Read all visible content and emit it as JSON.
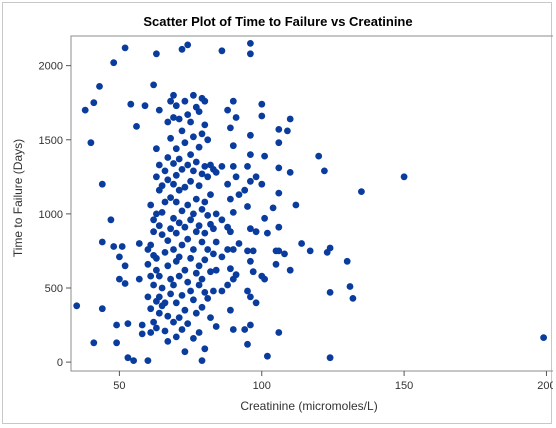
{
  "chart_data": {
    "type": "scatter",
    "title": "Scatter Plot of Time to Failure vs Creatinine",
    "xlabel": "Creatinine (micromoles/L)",
    "ylabel": "Time to Failure (Days)",
    "xlim": [
      33,
      203
    ],
    "ylim": [
      -60,
      2200
    ],
    "xticks": [
      50,
      100,
      150,
      200
    ],
    "yticks": [
      0,
      500,
      1000,
      1500,
      2000
    ],
    "marker_color": "#0a3c9e",
    "grid": false,
    "points": [
      [
        35,
        380
      ],
      [
        38,
        1700
      ],
      [
        40,
        1480
      ],
      [
        41,
        1750
      ],
      [
        41,
        130
      ],
      [
        43,
        1860
      ],
      [
        44,
        1200
      ],
      [
        44,
        810
      ],
      [
        44,
        360
      ],
      [
        47,
        960
      ],
      [
        48,
        2020
      ],
      [
        48,
        780
      ],
      [
        49,
        130
      ],
      [
        49,
        250
      ],
      [
        50,
        560
      ],
      [
        50,
        710
      ],
      [
        51,
        780
      ],
      [
        52,
        2120
      ],
      [
        52,
        530
      ],
      [
        52,
        650
      ],
      [
        53,
        30
      ],
      [
        53,
        260
      ],
      [
        54,
        1740
      ],
      [
        55,
        10
      ],
      [
        56,
        1590
      ],
      [
        57,
        800
      ],
      [
        57,
        560
      ],
      [
        58,
        250
      ],
      [
        58,
        190
      ],
      [
        59,
        1730
      ],
      [
        60,
        660
      ],
      [
        60,
        760
      ],
      [
        60,
        440
      ],
      [
        60,
        10
      ],
      [
        61,
        1060
      ],
      [
        61,
        790
      ],
      [
        61,
        580
      ],
      [
        61,
        360
      ],
      [
        61,
        200
      ],
      [
        62,
        1870
      ],
      [
        62,
        960
      ],
      [
        62,
        880
      ],
      [
        62,
        720
      ],
      [
        62,
        520
      ],
      [
        62,
        270
      ],
      [
        63,
        2080
      ],
      [
        63,
        1440
      ],
      [
        63,
        1250
      ],
      [
        63,
        1000
      ],
      [
        63,
        700
      ],
      [
        63,
        620
      ],
      [
        63,
        410
      ],
      [
        63,
        230
      ],
      [
        64,
        1700
      ],
      [
        64,
        1330
      ],
      [
        64,
        1160
      ],
      [
        64,
        920
      ],
      [
        64,
        580
      ],
      [
        64,
        440
      ],
      [
        64,
        330
      ],
      [
        65,
        1190
      ],
      [
        65,
        1010
      ],
      [
        65,
        860
      ],
      [
        65,
        500
      ],
      [
        65,
        380
      ],
      [
        66,
        1290
      ],
      [
        66,
        1080
      ],
      [
        66,
        740
      ],
      [
        66,
        400
      ],
      [
        66,
        210
      ],
      [
        67,
        1620
      ],
      [
        67,
        1380
      ],
      [
        67,
        1230
      ],
      [
        67,
        820
      ],
      [
        67,
        650
      ],
      [
        67,
        310
      ],
      [
        67,
        140
      ],
      [
        68,
        1760
      ],
      [
        68,
        1510
      ],
      [
        68,
        1110
      ],
      [
        68,
        900
      ],
      [
        68,
        560
      ],
      [
        68,
        460
      ],
      [
        69,
        1800
      ],
      [
        69,
        1650
      ],
      [
        69,
        1340
      ],
      [
        69,
        1200
      ],
      [
        69,
        970
      ],
      [
        69,
        760
      ],
      [
        69,
        520
      ],
      [
        69,
        270
      ],
      [
        70,
        1730
      ],
      [
        70,
        1440
      ],
      [
        70,
        1260
      ],
      [
        70,
        1080
      ],
      [
        70,
        870
      ],
      [
        70,
        680
      ],
      [
        70,
        400
      ],
      [
        70,
        170
      ],
      [
        71,
        1640
      ],
      [
        71,
        1370
      ],
      [
        71,
        1160
      ],
      [
        71,
        940
      ],
      [
        71,
        710
      ],
      [
        71,
        580
      ],
      [
        71,
        300
      ],
      [
        72,
        2110
      ],
      [
        72,
        1560
      ],
      [
        72,
        1300
      ],
      [
        72,
        1020
      ],
      [
        72,
        790
      ],
      [
        72,
        450
      ],
      [
        72,
        220
      ],
      [
        73,
        1760
      ],
      [
        73,
        1480
      ],
      [
        73,
        1180
      ],
      [
        73,
        910
      ],
      [
        73,
        620
      ],
      [
        73,
        350
      ],
      [
        73,
        70
      ],
      [
        74,
        2140
      ],
      [
        74,
        1670
      ],
      [
        74,
        1330
      ],
      [
        74,
        1060
      ],
      [
        74,
        830
      ],
      [
        74,
        540
      ],
      [
        74,
        260
      ],
      [
        75,
        1620
      ],
      [
        75,
        1400
      ],
      [
        75,
        1220
      ],
      [
        75,
        960
      ],
      [
        75,
        700
      ],
      [
        75,
        480
      ],
      [
        76,
        1800
      ],
      [
        76,
        1520
      ],
      [
        76,
        1290
      ],
      [
        76,
        1000
      ],
      [
        76,
        760
      ],
      [
        76,
        420
      ],
      [
        76,
        160
      ],
      [
        77,
        1720
      ],
      [
        77,
        1350
      ],
      [
        77,
        1100
      ],
      [
        77,
        880
      ],
      [
        77,
        600
      ],
      [
        77,
        330
      ],
      [
        78,
        1690
      ],
      [
        78,
        1450
      ],
      [
        78,
        1190
      ],
      [
        78,
        920
      ],
      [
        78,
        650
      ],
      [
        78,
        520
      ],
      [
        78,
        200
      ],
      [
        79,
        1780
      ],
      [
        79,
        1540
      ],
      [
        79,
        1270
      ],
      [
        79,
        1030
      ],
      [
        79,
        810
      ],
      [
        79,
        560
      ],
      [
        79,
        370
      ],
      [
        79,
        10
      ],
      [
        80,
        1760
      ],
      [
        80,
        1600
      ],
      [
        80,
        1320
      ],
      [
        80,
        1080
      ],
      [
        80,
        870
      ],
      [
        80,
        690
      ],
      [
        80,
        470
      ],
      [
        80,
        90
      ],
      [
        81,
        1500
      ],
      [
        81,
        1250
      ],
      [
        81,
        990
      ],
      [
        81,
        760
      ],
      [
        81,
        430
      ],
      [
        82,
        1330
      ],
      [
        82,
        1130
      ],
      [
        82,
        930
      ],
      [
        82,
        610
      ],
      [
        82,
        300
      ],
      [
        83,
        1300
      ],
      [
        83,
        900
      ],
      [
        83,
        730
      ],
      [
        83,
        480
      ],
      [
        84,
        1280
      ],
      [
        84,
        1000
      ],
      [
        84,
        810
      ],
      [
        84,
        620
      ],
      [
        84,
        240
      ],
      [
        86,
        2100
      ],
      [
        86,
        1320
      ],
      [
        86,
        960
      ],
      [
        86,
        710
      ],
      [
        86,
        480
      ],
      [
        88,
        1700
      ],
      [
        88,
        1200
      ],
      [
        88,
        910
      ],
      [
        88,
        760
      ],
      [
        88,
        520
      ],
      [
        89,
        1580
      ],
      [
        89,
        1100
      ],
      [
        89,
        880
      ],
      [
        89,
        630
      ],
      [
        89,
        350
      ],
      [
        90,
        1760
      ],
      [
        90,
        1460
      ],
      [
        90,
        1320
      ],
      [
        90,
        1010
      ],
      [
        90,
        760
      ],
      [
        90,
        560
      ],
      [
        90,
        220
      ],
      [
        91,
        1650
      ],
      [
        91,
        1250
      ],
      [
        91,
        590
      ],
      [
        92,
        1130
      ],
      [
        92,
        800
      ],
      [
        94,
        1160
      ],
      [
        94,
        220
      ],
      [
        95,
        1320
      ],
      [
        95,
        1050
      ],
      [
        95,
        750
      ],
      [
        95,
        480
      ],
      [
        95,
        120
      ],
      [
        96,
        2150
      ],
      [
        96,
        2080
      ],
      [
        96,
        1530
      ],
      [
        96,
        1400
      ],
      [
        96,
        1220
      ],
      [
        96,
        900
      ],
      [
        96,
        680
      ],
      [
        96,
        440
      ],
      [
        96,
        250
      ],
      [
        97,
        750
      ],
      [
        97,
        610
      ],
      [
        98,
        1250
      ],
      [
        98,
        880
      ],
      [
        98,
        400
      ],
      [
        100,
        1740
      ],
      [
        100,
        1660
      ],
      [
        100,
        1200
      ],
      [
        100,
        580
      ],
      [
        101,
        1390
      ],
      [
        101,
        970
      ],
      [
        101,
        560
      ],
      [
        102,
        870
      ],
      [
        102,
        40
      ],
      [
        104,
        1040
      ],
      [
        105,
        750
      ],
      [
        105,
        660
      ],
      [
        106,
        1570
      ],
      [
        106,
        1480
      ],
      [
        106,
        1310
      ],
      [
        106,
        1140
      ],
      [
        106,
        910
      ],
      [
        106,
        750
      ],
      [
        106,
        200
      ],
      [
        108,
        730
      ],
      [
        109,
        1560
      ],
      [
        110,
        1640
      ],
      [
        110,
        1280
      ],
      [
        110,
        620
      ],
      [
        112,
        1060
      ],
      [
        114,
        800
      ],
      [
        117,
        750
      ],
      [
        120,
        1390
      ],
      [
        122,
        1290
      ],
      [
        123,
        740
      ],
      [
        124,
        770
      ],
      [
        124,
        470
      ],
      [
        124,
        30
      ],
      [
        130,
        680
      ],
      [
        131,
        510
      ],
      [
        132,
        430
      ],
      [
        135,
        1150
      ],
      [
        150,
        1250
      ],
      [
        199,
        165
      ]
    ]
  }
}
